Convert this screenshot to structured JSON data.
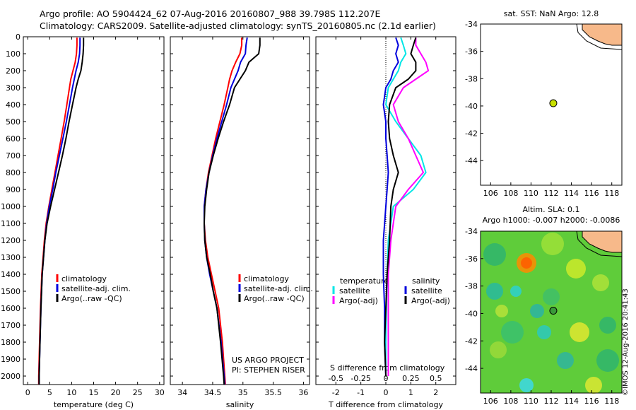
{
  "header": {
    "line1": "Argo profile: AO 5904424_62 07-Aug-2016 20160807_988 39.798S 112.207E",
    "line2": "Climatology: CARS2009. Satellite-adjusted climatology: synTS_20160805.nc (2.1d earlier)"
  },
  "side_stamp": "©IMOS 12-Aug-2016 20:41:43",
  "colors": {
    "climatology": "#ff0000",
    "satellite": "#0000dd",
    "argo": "#000000",
    "t_satellite": "#00e6e6",
    "s_argo": "#ff00ff",
    "land": "#f7b98a"
  },
  "credits": [
    "US ARGO PROJECT",
    "PI: STEPHEN RISER"
  ],
  "chart_data": [
    {
      "type": "line",
      "panel": "temperature",
      "xlabel": "temperature (deg C)",
      "xlim": [
        -1,
        31
      ],
      "xticks": [
        0,
        5,
        10,
        15,
        20,
        25,
        30
      ],
      "ylim": [
        2050,
        0
      ],
      "yticks": [
        0,
        100,
        200,
        300,
        400,
        500,
        600,
        700,
        800,
        900,
        1000,
        1100,
        1200,
        1300,
        1400,
        1500,
        1600,
        1700,
        1800,
        1900,
        2000
      ],
      "depth": [
        5,
        50,
        100,
        150,
        200,
        250,
        300,
        400,
        500,
        600,
        700,
        800,
        900,
        1000,
        1100,
        1200,
        1300,
        1400,
        1600,
        1800,
        2000,
        2050
      ],
      "series": [
        {
          "name": "climatology",
          "values": [
            11.2,
            11.2,
            11.1,
            10.8,
            10.3,
            9.8,
            9.5,
            8.9,
            8.3,
            7.6,
            6.9,
            6.2,
            5.5,
            4.8,
            4.2,
            3.8,
            3.5,
            3.2,
            2.9,
            2.7,
            2.5,
            2.5
          ]
        },
        {
          "name": "satellite-adj. clim.",
          "values": [
            11.9,
            11.9,
            11.8,
            11.5,
            11.0,
            10.6,
            10.2,
            9.5,
            8.8,
            8.0,
            7.2,
            6.4,
            5.7,
            4.9,
            4.3,
            3.9,
            3.6,
            3.3,
            3.0,
            2.8,
            2.6,
            2.6
          ]
        },
        {
          "name": "Argo(..raw -QC)",
          "values": [
            12.7,
            12.7,
            12.6,
            12.4,
            12.1,
            11.5,
            11.0,
            10.2,
            9.4,
            8.7,
            7.9,
            7.0,
            6.1,
            5.2,
            4.4,
            3.9,
            3.6,
            3.3,
            3.0,
            2.8,
            2.6,
            2.6
          ]
        }
      ]
    },
    {
      "type": "line",
      "panel": "salinity",
      "xlabel": "salinity",
      "xlim": [
        33.8,
        36.1
      ],
      "xticks": [
        34,
        34.5,
        35,
        35.5,
        36
      ],
      "ylim": [
        2050,
        0
      ],
      "depth": [
        5,
        50,
        100,
        150,
        200,
        250,
        300,
        400,
        500,
        600,
        700,
        800,
        900,
        1000,
        1100,
        1200,
        1300,
        1400,
        1500,
        1600,
        1800,
        2000,
        2050
      ],
      "series": [
        {
          "name": "climatology",
          "values": [
            34.98,
            34.98,
            34.95,
            34.88,
            34.82,
            34.78,
            34.75,
            34.69,
            34.62,
            34.55,
            34.49,
            34.43,
            34.39,
            34.36,
            34.36,
            34.38,
            34.42,
            34.48,
            34.54,
            34.6,
            34.66,
            34.7,
            34.71
          ]
        },
        {
          "name": "satellite-adj. clim.",
          "values": [
            35.07,
            35.05,
            35.04,
            34.96,
            34.92,
            34.86,
            34.8,
            34.73,
            34.65,
            34.57,
            34.5,
            34.44,
            34.39,
            34.36,
            34.36,
            34.37,
            34.4,
            34.45,
            34.51,
            34.57,
            34.64,
            34.69,
            34.7
          ]
        },
        {
          "name": "Argo(..raw -QC)",
          "values": [
            35.28,
            35.28,
            35.26,
            35.1,
            35.04,
            34.95,
            34.86,
            34.78,
            34.68,
            34.59,
            34.51,
            34.44,
            34.4,
            34.37,
            34.36,
            34.37,
            34.4,
            34.46,
            34.51,
            34.57,
            34.63,
            34.68,
            34.69
          ]
        }
      ]
    },
    {
      "type": "line",
      "panel": "difference",
      "xlabel": "T difference from climatology",
      "xlabel2": "S difference from climatology",
      "xlim": [
        -2.8,
        2.8
      ],
      "xticks": [
        -2,
        -1,
        0,
        1,
        2
      ],
      "xticks2": [
        -0.5,
        -0.25,
        0,
        0.25,
        0.5
      ],
      "xticks2_labels": [
        "-0.5",
        "-0.25",
        "0",
        "0.25",
        "0.5"
      ],
      "ylim": [
        2050,
        0
      ],
      "depth": [
        5,
        50,
        100,
        150,
        200,
        250,
        300,
        400,
        500,
        600,
        700,
        800,
        900,
        1000,
        1200,
        1400,
        1600,
        1800,
        2000
      ],
      "legend_titles": [
        "temperature",
        "salinity"
      ],
      "series": [
        {
          "name": "satellite",
          "group": "temperature",
          "values": [
            0.6,
            0.7,
            0.8,
            0.6,
            0.5,
            0.3,
            0.1,
            0.0,
            0.4,
            0.9,
            1.4,
            1.6,
            1.1,
            0.3,
            0.1,
            0.05,
            0.02,
            0.0,
            0.0
          ]
        },
        {
          "name": "Argo(-adj)",
          "group": "temperature",
          "values": [
            1.2,
            1.2,
            1.4,
            1.6,
            1.7,
            1.2,
            0.7,
            0.3,
            0.5,
            0.9,
            1.2,
            1.5,
            0.9,
            0.4,
            0.2,
            0.1,
            0.1,
            0.1,
            0.1
          ]
        },
        {
          "name": "satellite",
          "group": "salinity",
          "values": [
            0.4,
            0.5,
            0.4,
            0.5,
            0.3,
            0.2,
            0.0,
            -0.1,
            0.0,
            0.0,
            0.05,
            0.1,
            0.05,
            0.0,
            -0.1,
            -0.1,
            -0.05,
            -0.05,
            0.0
          ]
        },
        {
          "name": "Argo(-adj)",
          "group": "salinity",
          "values": [
            1.2,
            1.1,
            1.0,
            1.2,
            1.2,
            0.9,
            0.4,
            0.15,
            0.1,
            0.15,
            0.3,
            0.5,
            0.3,
            0.2,
            0.15,
            0.05,
            0.0,
            -0.05,
            0.0
          ]
        }
      ]
    },
    {
      "type": "scatter",
      "panel": "sst-map",
      "title": "sat. SST: NaN Argo: 12.8",
      "xlim": [
        105,
        119
      ],
      "xticks": [
        106,
        108,
        110,
        112,
        114,
        116,
        118
      ],
      "ylim": [
        -45.8,
        -34
      ],
      "yticks": [
        -34,
        -36,
        -38,
        -40,
        -42,
        -44
      ],
      "points": [
        {
          "x": 112.207,
          "y": -39.798
        }
      ]
    },
    {
      "type": "heatmap",
      "panel": "sla-map",
      "title": "Altim. SLA: 0.1",
      "subtitle": "Argo h1000: -0.007 h2000: -0.0086",
      "xlim": [
        105,
        119
      ],
      "xticks": [
        106,
        108,
        110,
        112,
        114,
        116,
        118
      ],
      "ylim": [
        -45.8,
        -34
      ],
      "yticks": [
        -34,
        -36,
        -38,
        -40,
        -42,
        -44
      ],
      "points": [
        {
          "x": 112.207,
          "y": -39.798
        }
      ]
    }
  ]
}
